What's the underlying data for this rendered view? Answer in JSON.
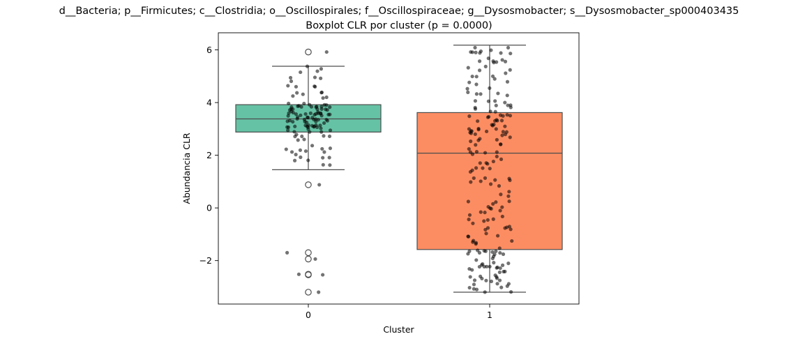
{
  "chart_data": {
    "type": "boxplot",
    "title": "d__Bacteria; p__Firmicutes; c__Clostridia; o__Oscillospirales; f__Oscillospiraceae; g__Dysosmobacter; s__Dysosmobacter_sp000403435",
    "subtitle": "Boxplot CLR por cluster (p = 0.0000)",
    "xlabel": "Cluster",
    "ylabel": "Abundancia CLR",
    "categories": [
      "0",
      "1"
    ],
    "ylim": [
      -3.65,
      6.65
    ],
    "yticks": [
      -2,
      0,
      2,
      4,
      6
    ],
    "ytick_labels": [
      "−2",
      "0",
      "2",
      "4",
      "6"
    ],
    "grid": false,
    "boxes": [
      {
        "category": "0",
        "color": "#66c2a5",
        "q1": 2.88,
        "median": 3.38,
        "q3": 3.92,
        "whisker_low": 1.45,
        "whisker_high": 5.38,
        "outliers": [
          5.92,
          0.88,
          -1.7,
          -1.94,
          -2.52,
          -2.54,
          -3.2
        ]
      },
      {
        "category": "1",
        "color": "#fc8d62",
        "q1": -1.58,
        "median": 2.08,
        "q3": 3.62,
        "whisker_low": -3.2,
        "whisker_high": 6.18,
        "outliers": []
      }
    ],
    "jitter": [
      {
        "category": "0",
        "n": 125,
        "sample_y_range": [
          -3.2,
          5.92
        ],
        "color": "#000000",
        "alpha": 0.55
      },
      {
        "category": "1",
        "n": 200,
        "sample_y_range": [
          -3.2,
          6.18
        ],
        "color": "#000000",
        "alpha": 0.55
      }
    ]
  }
}
